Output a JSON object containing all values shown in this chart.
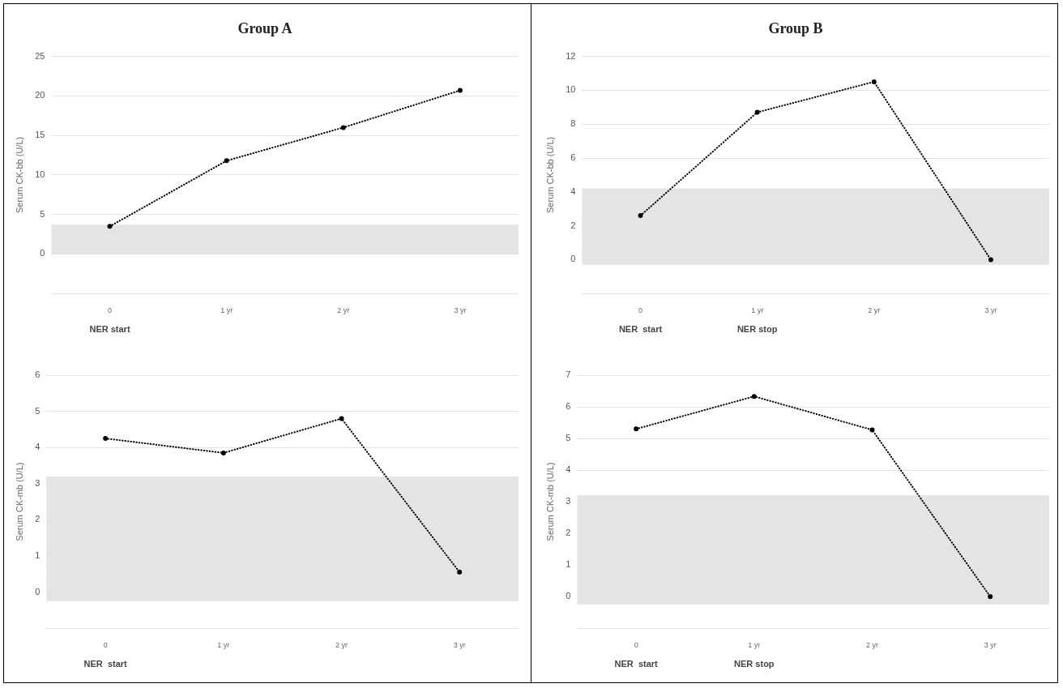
{
  "chart_data": [
    {
      "type": "line",
      "title": "Group A",
      "ylabel": "Serum CK-bb (U/L)",
      "categories": [
        "0",
        "1 yr",
        "2 yr",
        "3 yr"
      ],
      "series": [
        {
          "color": "#000000",
          "values": [
            3.5,
            11.8,
            16.0,
            20.7
          ]
        }
      ],
      "ylim": [
        -5,
        25
      ],
      "yticks": [
        {
          "value": -5,
          "label": null
        },
        0,
        5,
        10,
        15,
        20,
        25
      ],
      "grid": "y",
      "legend": false,
      "marker": "circle",
      "line_style": "dotted",
      "bands": [
        {
          "axis": "y",
          "from": 0,
          "to": 3.7,
          "color": "#e4e4e4"
        }
      ],
      "annotations": [
        "NER start"
      ]
    },
    {
      "type": "line",
      "title": "Group B",
      "ylabel": "Serum CK-bb (U/L)",
      "categories": [
        "0",
        "1 yr",
        "2 yr",
        "3 yr"
      ],
      "series": [
        {
          "color": "#000000",
          "values": [
            2.6,
            8.7,
            10.5,
            0
          ]
        }
      ],
      "ylim": [
        -2,
        12
      ],
      "yticks": [
        {
          "value": -2,
          "label": null
        },
        0,
        2,
        4,
        6,
        8,
        10,
        12
      ],
      "grid": "y",
      "legend": false,
      "marker": "circle",
      "line_style": "dotted",
      "bands": [
        {
          "axis": "y",
          "from": -0.3,
          "to": 4.2,
          "color": "#e4e4e4"
        }
      ],
      "annotations": [
        "NER  start",
        "NER stop"
      ]
    },
    {
      "type": "line",
      "ylabel": "Serum CK-mb (U/L)",
      "categories": [
        "0",
        "1 yr",
        "2 yr",
        "3 yr"
      ],
      "series": [
        {
          "color": "#000000",
          "values": [
            4.25,
            3.85,
            4.8,
            0.55
          ]
        }
      ],
      "ylim": [
        -1,
        6
      ],
      "yticks": [
        {
          "value": -1,
          "label": null
        },
        0,
        1,
        2,
        3,
        4,
        5,
        6
      ],
      "grid": "y",
      "legend": false,
      "marker": "circle",
      "line_style": "dotted",
      "bands": [
        {
          "axis": "y",
          "from": -0.25,
          "to": 3.2,
          "color": "#e4e4e4"
        }
      ],
      "annotations": [
        "NER  start"
      ]
    },
    {
      "type": "line",
      "ylabel": "Serum CK-mb (U/L)",
      "categories": [
        "0",
        "1 yr",
        "2 yr",
        "3 yr"
      ],
      "series": [
        {
          "color": "#000000",
          "values": [
            5.3,
            6.33,
            5.27,
            0
          ]
        }
      ],
      "ylim": [
        -1,
        7
      ],
      "yticks": [
        {
          "value": -1,
          "label": null
        },
        0,
        1,
        2,
        3,
        4,
        5,
        6,
        7
      ],
      "grid": "y",
      "legend": false,
      "marker": "circle",
      "line_style": "dotted",
      "bands": [
        {
          "axis": "y",
          "from": -0.25,
          "to": 3.2,
          "color": "#e4e4e4"
        }
      ],
      "annotations": [
        "NER  start",
        "NER stop"
      ]
    }
  ]
}
